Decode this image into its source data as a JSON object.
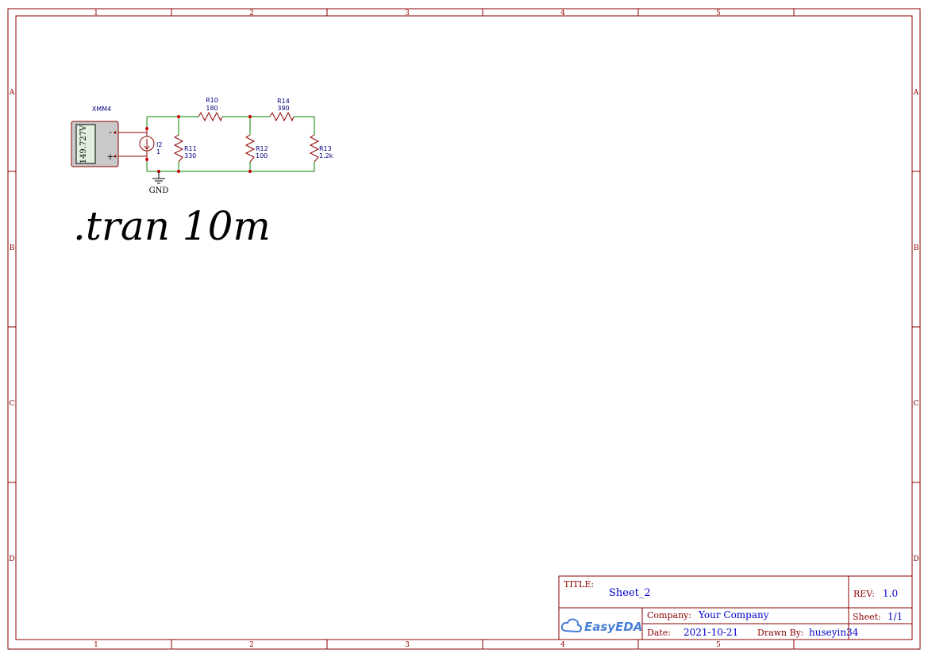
{
  "frame": {
    "columns": [
      "1",
      "2",
      "3",
      "4",
      "5"
    ],
    "rows": [
      "A",
      "B",
      "C",
      "D"
    ]
  },
  "meter": {
    "name": "XMM4",
    "reading": "149.727V",
    "minus": "-",
    "plus": "+"
  },
  "components": {
    "i2": {
      "name": "I2",
      "value": "1"
    },
    "r10": {
      "name": "R10",
      "value": "180"
    },
    "r14": {
      "name": "R14",
      "value": "390"
    },
    "r11": {
      "name": "R11",
      "value": "330"
    },
    "r12": {
      "name": "R12",
      "value": "100"
    },
    "r13": {
      "name": "R13",
      "value": "1.2k"
    }
  },
  "gnd_label": "GND",
  "spice_directive": ".tran 10m",
  "title_block": {
    "title_label": "TITLE:",
    "title": "Sheet_2",
    "rev_label": "REV:",
    "rev": "1.0",
    "company_label": "Company:",
    "company": "Your Company",
    "sheet_label": "Sheet:",
    "sheet": "1/1",
    "date_label": "Date:",
    "date": "2021-10-21",
    "drawn_label": "Drawn By:",
    "drawn_by": "huseyin34",
    "logo": "EasyEDA"
  },
  "colors": {
    "frame": "#8b0000",
    "wire": "#008000",
    "label": "#000080",
    "value": "#0000cc"
  }
}
